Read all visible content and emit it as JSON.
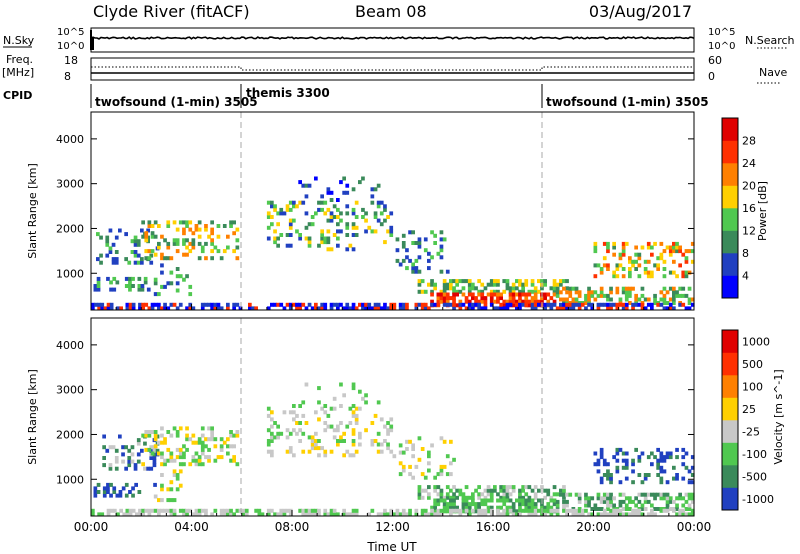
{
  "header": {
    "station": "Clyde River (fitACF)",
    "beam": "Beam 08",
    "date": "03/Aug/2017"
  },
  "status_panels": {
    "nsky": {
      "left_label": "N.Sky",
      "left_ticks": [
        "10^5",
        "10^0"
      ],
      "right_ticks": [
        "10^5",
        "10^0"
      ],
      "right_label": "N.Search"
    },
    "freq": {
      "left_label_top": "Freq.",
      "left_label_unit": "[MHz]",
      "left_ticks": [
        "18",
        "8"
      ],
      "right_ticks": [
        "60",
        "0"
      ],
      "right_label": "Nave"
    },
    "cpid": {
      "label": "CPID",
      "segments": [
        {
          "start_h": 0,
          "end_h": 6,
          "name": "twofsound (1-min) 3505"
        },
        {
          "start_h": 6,
          "end_h": 18,
          "name": "themis 3300"
        },
        {
          "start_h": 18,
          "end_h": 24,
          "name": "twofsound (1-min) 3505"
        }
      ]
    }
  },
  "chart_data": [
    {
      "type": "heatmap",
      "panel": "power",
      "ylabel": "Slant Range [km]",
      "yticks": [
        "1000",
        "2000",
        "3000",
        "4000"
      ],
      "ylim": [
        180,
        4600
      ],
      "xlim_hours": [
        0,
        24
      ],
      "colorbar": {
        "label": "Power [dB]",
        "ticks": [
          "4",
          "8",
          "12",
          "16",
          "20",
          "24",
          "28"
        ],
        "colors": [
          "#0000ff",
          "#2040c0",
          "#3a8a5a",
          "#50c850",
          "#ffd000",
          "#ff8000",
          "#ff3000",
          "#e00000"
        ]
      }
    },
    {
      "type": "heatmap",
      "panel": "velocity",
      "ylabel": "Slant Range [km]",
      "yticks": [
        "1000",
        "2000",
        "3000",
        "4000"
      ],
      "ylim": [
        180,
        4600
      ],
      "xlim_hours": [
        0,
        24
      ],
      "xlabel": "Time UT",
      "xticks": [
        "00:00",
        "04:00",
        "08:00",
        "12:00",
        "16:00",
        "20:00",
        "00:00"
      ],
      "colorbar": {
        "label": "Velocity [m s^-1]",
        "ticks": [
          "1000",
          "500",
          "100",
          "25",
          "-25",
          "-100",
          "-500",
          "-1000"
        ],
        "colors": [
          "#2040c0",
          "#3a8a5a",
          "#50c850",
          "#c8c8c8",
          "#ffd000",
          "#ff8000",
          "#ff3000",
          "#e00000"
        ]
      }
    }
  ]
}
